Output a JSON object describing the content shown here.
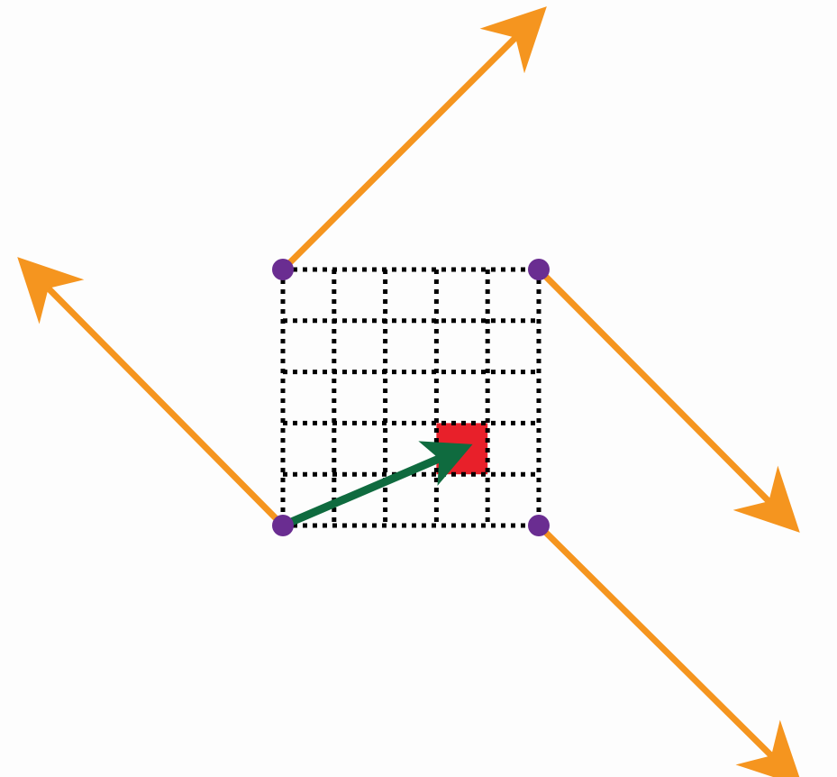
{
  "diagram": {
    "grid": {
      "rows": 5,
      "cols": 5,
      "line_color": "#000000",
      "line_style": "dotted"
    },
    "highlighted_cell": {
      "row": 3,
      "col": 3,
      "color": "#e8202a"
    },
    "corner_points": [
      {
        "id": "top-left",
        "color": "#6a2d91"
      },
      {
        "id": "top-right",
        "color": "#6a2d91"
      },
      {
        "id": "bottom-left",
        "color": "#6a2d91"
      },
      {
        "id": "bottom-right",
        "color": "#6a2d91"
      }
    ],
    "corner_arrows": [
      {
        "from": "top-left",
        "direction": "up-right",
        "color": "#f5951f"
      },
      {
        "from": "top-right",
        "direction": "down-right",
        "color": "#f5951f"
      },
      {
        "from": "bottom-left",
        "direction": "up-left",
        "color": "#f5951f"
      },
      {
        "from": "bottom-right",
        "direction": "down-right",
        "color": "#f5951f"
      }
    ],
    "center_arrow": {
      "from": "bottom-left",
      "to": "highlighted-cell-center",
      "color": "#0f6b3f"
    }
  }
}
